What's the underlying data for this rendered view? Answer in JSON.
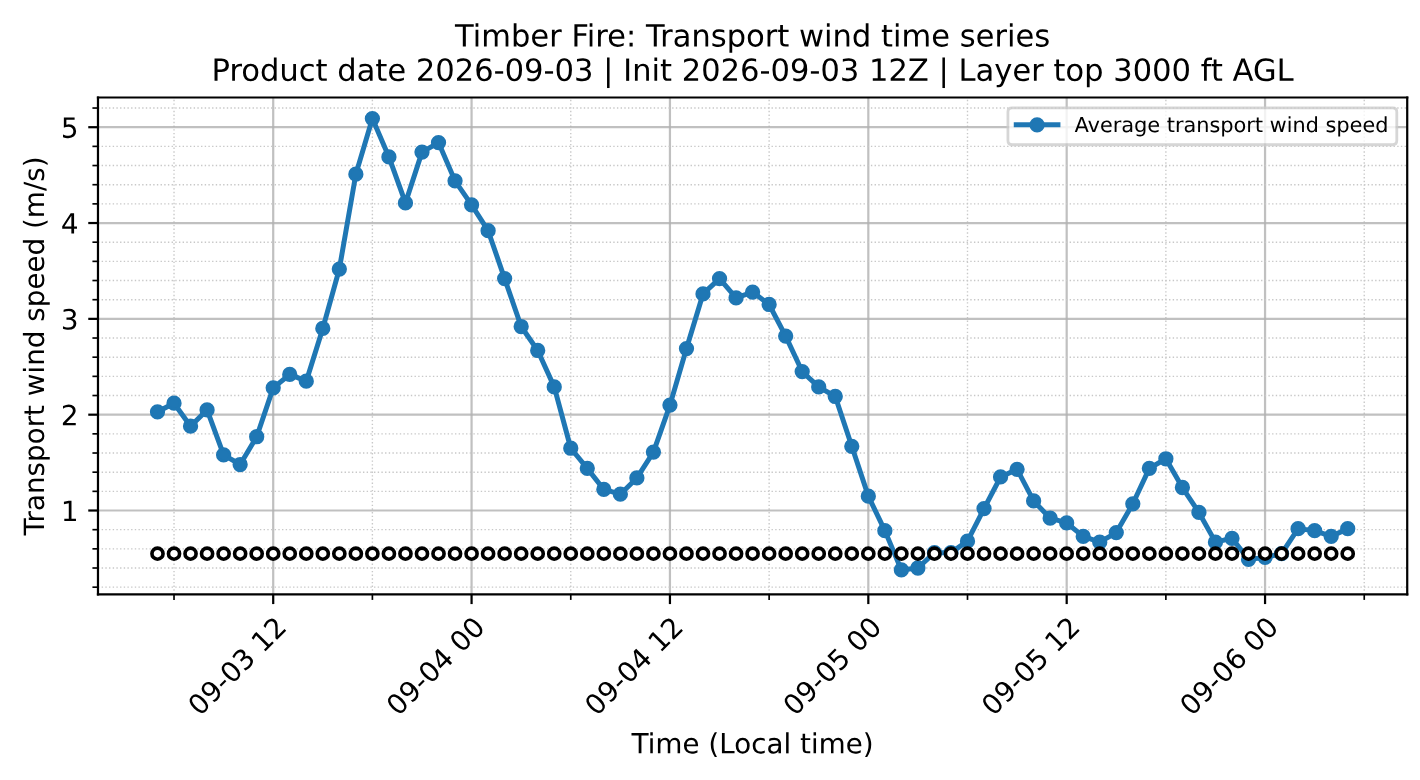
{
  "chart_data": {
    "type": "line",
    "title": "Timber Fire: Transport wind time series\nProduct date 2026-09-03 | Init 2026-09-03 12Z | Layer top 3000 ft AGL",
    "xlabel": "Time (Local time)",
    "ylabel": "Transport wind speed (m/s)",
    "x": [
      "2026-09-03T05:00",
      "2026-09-03T06:00",
      "2026-09-03T07:00",
      "2026-09-03T08:00",
      "2026-09-03T09:00",
      "2026-09-03T10:00",
      "2026-09-03T11:00",
      "2026-09-03T12:00",
      "2026-09-03T13:00",
      "2026-09-03T14:00",
      "2026-09-03T15:00",
      "2026-09-03T16:00",
      "2026-09-03T17:00",
      "2026-09-03T18:00",
      "2026-09-03T19:00",
      "2026-09-03T20:00",
      "2026-09-03T21:00",
      "2026-09-03T22:00",
      "2026-09-03T23:00",
      "2026-09-04T00:00",
      "2026-09-04T01:00",
      "2026-09-04T02:00",
      "2026-09-04T03:00",
      "2026-09-04T04:00",
      "2026-09-04T05:00",
      "2026-09-04T06:00",
      "2026-09-04T07:00",
      "2026-09-04T08:00",
      "2026-09-04T09:00",
      "2026-09-04T10:00",
      "2026-09-04T11:00",
      "2026-09-04T12:00",
      "2026-09-04T13:00",
      "2026-09-04T14:00",
      "2026-09-04T15:00",
      "2026-09-04T16:00",
      "2026-09-04T17:00",
      "2026-09-04T18:00",
      "2026-09-04T19:00",
      "2026-09-04T20:00",
      "2026-09-04T21:00",
      "2026-09-04T22:00",
      "2026-09-04T23:00",
      "2026-09-05T00:00",
      "2026-09-05T01:00",
      "2026-09-05T02:00",
      "2026-09-05T03:00",
      "2026-09-05T04:00",
      "2026-09-05T05:00",
      "2026-09-05T06:00",
      "2026-09-05T07:00",
      "2026-09-05T08:00",
      "2026-09-05T09:00",
      "2026-09-05T10:00",
      "2026-09-05T11:00",
      "2026-09-05T12:00",
      "2026-09-05T13:00",
      "2026-09-05T14:00",
      "2026-09-05T15:00",
      "2026-09-05T16:00",
      "2026-09-05T17:00",
      "2026-09-05T18:00",
      "2026-09-05T19:00",
      "2026-09-05T20:00",
      "2026-09-05T21:00",
      "2026-09-05T22:00",
      "2026-09-05T23:00",
      "2026-09-06T00:00",
      "2026-09-06T01:00",
      "2026-09-06T02:00",
      "2026-09-06T03:00",
      "2026-09-06T04:00",
      "2026-09-06T05:00"
    ],
    "series": [
      {
        "name": "Average transport wind speed",
        "color": "#1f77b4",
        "marker": "circle",
        "values": [
          2.03,
          2.12,
          1.88,
          2.05,
          1.58,
          1.48,
          1.77,
          2.28,
          2.42,
          2.35,
          2.9,
          3.52,
          4.51,
          5.09,
          4.69,
          4.21,
          4.74,
          4.84,
          4.44,
          4.19,
          3.92,
          3.42,
          2.92,
          2.67,
          2.29,
          1.65,
          1.44,
          1.22,
          1.17,
          1.34,
          1.61,
          2.1,
          2.69,
          3.26,
          3.42,
          3.22,
          3.28,
          3.15,
          2.82,
          2.45,
          2.29,
          2.19,
          1.67,
          1.15,
          0.79,
          0.38,
          0.4,
          0.56,
          0.56,
          0.68,
          1.02,
          1.35,
          1.43,
          1.1,
          0.92,
          0.87,
          0.73,
          0.67,
          0.77,
          1.07,
          1.44,
          1.54,
          1.24,
          0.98,
          0.67,
          0.71,
          0.49,
          0.51,
          0.55,
          0.81,
          0.79,
          0.73,
          0.81
        ]
      },
      {
        "type": "scatter",
        "color": "#000000",
        "marker": "circle",
        "values": [
          0.55,
          0.55,
          0.55,
          0.55,
          0.55,
          0.55,
          0.55,
          0.55,
          0.55,
          0.55,
          0.55,
          0.55,
          0.55,
          0.55,
          0.55,
          0.55,
          0.55,
          0.55,
          0.55,
          0.55,
          0.55,
          0.55,
          0.55,
          0.55,
          0.55,
          0.55,
          0.55,
          0.55,
          0.55,
          0.55,
          0.55,
          0.55,
          0.55,
          0.55,
          0.55,
          0.55,
          0.55,
          0.55,
          0.55,
          0.55,
          0.55,
          0.55,
          0.55,
          0.55,
          0.55,
          0.55,
          0.55,
          0.55,
          0.55,
          0.55,
          0.55,
          0.55,
          0.55,
          0.55,
          0.55,
          0.55,
          0.55,
          0.55,
          0.55,
          0.55,
          0.55,
          0.55,
          0.55,
          0.55,
          0.55,
          0.55,
          0.55,
          0.55,
          0.55,
          0.55,
          0.55,
          0.55,
          0.55
        ]
      }
    ],
    "xlim": [
      "2026-09-03T01:24",
      "2026-09-06T08:36"
    ],
    "xticks": [
      {
        "value": "2026-09-03T12:00",
        "label": "09-03 12"
      },
      {
        "value": "2026-09-04T00:00",
        "label": "09-04 00"
      },
      {
        "value": "2026-09-04T12:00",
        "label": "09-04 12"
      },
      {
        "value": "2026-09-05T00:00",
        "label": "09-05 00"
      },
      {
        "value": "2026-09-05T12:00",
        "label": "09-05 12"
      },
      {
        "value": "2026-09-06T00:00",
        "label": "09-06 00"
      }
    ],
    "ylim": [
      0.125,
      5.31
    ],
    "yticks": [
      1,
      2,
      3,
      4,
      5
    ],
    "grid": true,
    "legend": "top right"
  }
}
